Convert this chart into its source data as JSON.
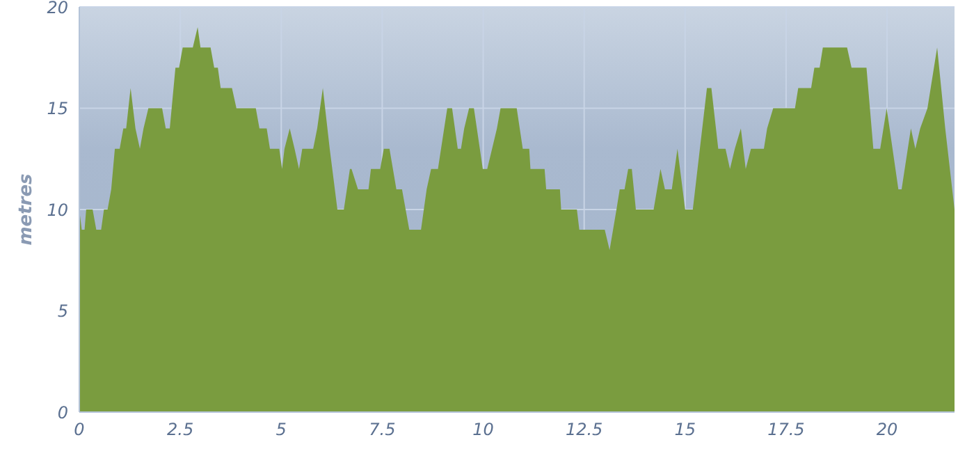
{
  "chart_data": {
    "type": "area",
    "ylabel": "metres",
    "color": "#7a9c3f",
    "x": [
      0,
      0.06,
      0.13,
      0.17,
      0.33,
      0.42,
      0.54,
      0.61,
      0.7,
      0.79,
      0.88,
      1.0,
      1.09,
      1.16,
      1.27,
      1.39,
      1.5,
      1.59,
      1.71,
      2.05,
      2.14,
      2.24,
      2.38,
      2.47,
      2.56,
      2.81,
      2.93,
      3.0,
      3.25,
      3.34,
      3.43,
      3.5,
      3.78,
      3.89,
      4.37,
      4.46,
      4.64,
      4.72,
      4.95,
      5.02,
      5.08,
      5.21,
      5.33,
      5.44,
      5.52,
      5.79,
      5.89,
      6.03,
      6.2,
      6.39,
      6.55,
      6.7,
      6.74,
      6.9,
      7.16,
      7.22,
      7.45,
      7.54,
      7.68,
      7.85,
      7.99,
      8.17,
      8.46,
      8.6,
      8.71,
      8.88,
      9.11,
      9.23,
      9.37,
      9.45,
      9.53,
      9.65,
      9.77,
      9.99,
      10.1,
      10.22,
      10.34,
      10.43,
      10.83,
      10.98,
      11.14,
      11.17,
      11.52,
      11.56,
      11.9,
      11.93,
      12.32,
      12.38,
      13.01,
      13.13,
      13.3,
      13.38,
      13.5,
      13.59,
      13.68,
      13.78,
      14.22,
      14.39,
      14.5,
      14.67,
      14.81,
      15.0,
      15.19,
      15.54,
      15.65,
      15.82,
      16.0,
      16.11,
      16.23,
      16.38,
      16.5,
      16.63,
      16.95,
      17.03,
      17.18,
      17.72,
      17.8,
      18.12,
      18.2,
      18.33,
      18.41,
      19.01,
      19.12,
      19.49,
      19.66,
      19.83,
      19.99,
      20.28,
      20.36,
      20.59,
      20.7,
      20.82,
      21.0,
      21.24,
      21.44,
      21.67
    ],
    "values": [
      10,
      9,
      9,
      10,
      10,
      9,
      9,
      10,
      10,
      11,
      13,
      13,
      14,
      14,
      16,
      14,
      13,
      14,
      15,
      15,
      14,
      14,
      17,
      17,
      18,
      18,
      19,
      18,
      18,
      17,
      17,
      16,
      16,
      15,
      15,
      14,
      14,
      13,
      13,
      12,
      13,
      14,
      13,
      12,
      13,
      13,
      14,
      16,
      13,
      10,
      10,
      12,
      12,
      11,
      11,
      12,
      12,
      13,
      13,
      11,
      11,
      9,
      9,
      11,
      12,
      12,
      15,
      15,
      13,
      13,
      14,
      15,
      15,
      12,
      12,
      13,
      14,
      15,
      15,
      13,
      13,
      12,
      12,
      11,
      11,
      10,
      10,
      9,
      9,
      8,
      10,
      11,
      11,
      12,
      12,
      10,
      10,
      12,
      11,
      11,
      13,
      10,
      10,
      16,
      16,
      13,
      13,
      12,
      13,
      14,
      12,
      13,
      13,
      14,
      15,
      15,
      16,
      16,
      17,
      17,
      18,
      18,
      17,
      17,
      13,
      13,
      15,
      11,
      11,
      14,
      13,
      14,
      15,
      18,
      14,
      10
    ],
    "xlim": [
      0,
      21.67
    ],
    "xticks": [
      0,
      2.5,
      5,
      7.5,
      10,
      12.5,
      15,
      17.5,
      20
    ],
    "ylim": [
      0,
      20
    ],
    "yticks": [
      0,
      5,
      10,
      15,
      20
    ],
    "grid": true
  }
}
